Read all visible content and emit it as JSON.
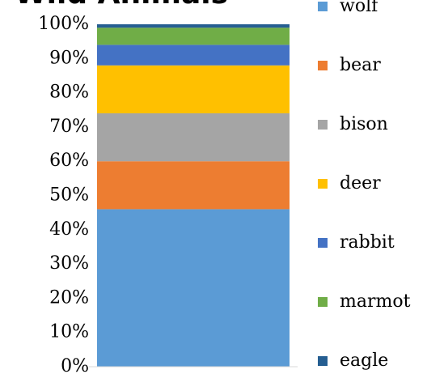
{
  "chart_data": {
    "type": "stacked_bar_100",
    "title": "Wild Animals",
    "categories": [
      null
    ],
    "series": [
      {
        "name": "wolf",
        "color": "#5b9bd5",
        "values": [
          46
        ]
      },
      {
        "name": "bear",
        "color": "#ed7d31",
        "values": [
          14
        ]
      },
      {
        "name": "bison",
        "color": "#a5a5a5",
        "values": [
          14
        ]
      },
      {
        "name": "deer",
        "color": "#ffc000",
        "values": [
          14
        ]
      },
      {
        "name": "rabbit",
        "color": "#4472c4",
        "values": [
          6
        ]
      },
      {
        "name": "marmot",
        "color": "#70ad47",
        "values": [
          5
        ]
      },
      {
        "name": "eagle",
        "color": "#255e91",
        "values": [
          1
        ]
      }
    ],
    "ylim": [
      0,
      100
    ],
    "yticks": [
      {
        "value": 0,
        "label": "0%"
      },
      {
        "value": 10,
        "label": "10%"
      },
      {
        "value": 20,
        "label": "20%"
      },
      {
        "value": 30,
        "label": "30%"
      },
      {
        "value": 40,
        "label": "40%"
      },
      {
        "value": 50,
        "label": "50%"
      },
      {
        "value": 60,
        "label": "60%"
      },
      {
        "value": 70,
        "label": "70%"
      },
      {
        "value": 80,
        "label": "80%"
      },
      {
        "value": 90,
        "label": "90%"
      },
      {
        "value": 100,
        "label": "100%"
      }
    ],
    "legend": "right"
  }
}
